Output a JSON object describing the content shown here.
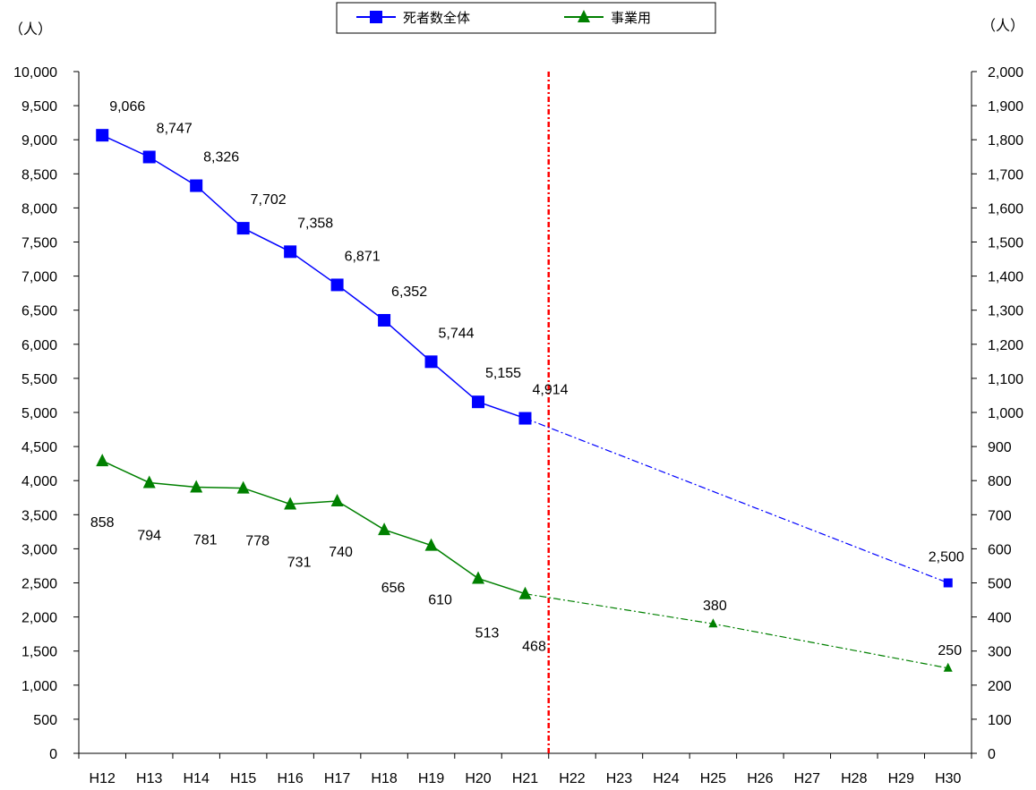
{
  "chart_data": {
    "type": "line",
    "title": "",
    "categories": [
      "H12",
      "H13",
      "H14",
      "H15",
      "H16",
      "H17",
      "H18",
      "H19",
      "H20",
      "H21",
      "H22",
      "H23",
      "H24",
      "H25",
      "H26",
      "H27",
      "H28",
      "H29",
      "H30"
    ],
    "y_left": {
      "unit": "（人）",
      "min": 0,
      "max": 10000,
      "step": 500
    },
    "y_right": {
      "unit": "（人）",
      "min": 0,
      "max": 2000,
      "step": 100
    },
    "divider_after_category": "H21",
    "legend_position": "top-center",
    "series": [
      {
        "name": "死者数全体",
        "axis": "left",
        "color": "#0000ff",
        "marker": "square",
        "actual": [
          {
            "x": "H12",
            "y": 9066,
            "label": "9,066"
          },
          {
            "x": "H13",
            "y": 8747,
            "label": "8,747"
          },
          {
            "x": "H14",
            "y": 8326,
            "label": "8,326"
          },
          {
            "x": "H15",
            "y": 7702,
            "label": "7,702"
          },
          {
            "x": "H16",
            "y": 7358,
            "label": "7,358"
          },
          {
            "x": "H17",
            "y": 6871,
            "label": "6,871"
          },
          {
            "x": "H18",
            "y": 6352,
            "label": "6,352"
          },
          {
            "x": "H19",
            "y": 5744,
            "label": "5,744"
          },
          {
            "x": "H20",
            "y": 5155,
            "label": "5,155"
          },
          {
            "x": "H21",
            "y": 4914,
            "label": "4,914"
          }
        ],
        "target": [
          {
            "x": "H30",
            "y": 2500,
            "label": "2,500"
          }
        ]
      },
      {
        "name": "事業用",
        "axis": "right",
        "color": "#008000",
        "marker": "triangle",
        "actual": [
          {
            "x": "H12",
            "y": 858,
            "label": "858"
          },
          {
            "x": "H13",
            "y": 794,
            "label": "794"
          },
          {
            "x": "H14",
            "y": 781,
            "label": "781"
          },
          {
            "x": "H15",
            "y": 778,
            "label": "778"
          },
          {
            "x": "H16",
            "y": 731,
            "label": "731"
          },
          {
            "x": "H17",
            "y": 740,
            "label": "740"
          },
          {
            "x": "H18",
            "y": 656,
            "label": "656"
          },
          {
            "x": "H19",
            "y": 610,
            "label": "610"
          },
          {
            "x": "H20",
            "y": 513,
            "label": "513"
          },
          {
            "x": "H21",
            "y": 468,
            "label": "468"
          }
        ],
        "target": [
          {
            "x": "H25",
            "y": 380,
            "label": "380"
          },
          {
            "x": "H30",
            "y": 250,
            "label": "250"
          }
        ]
      }
    ]
  }
}
